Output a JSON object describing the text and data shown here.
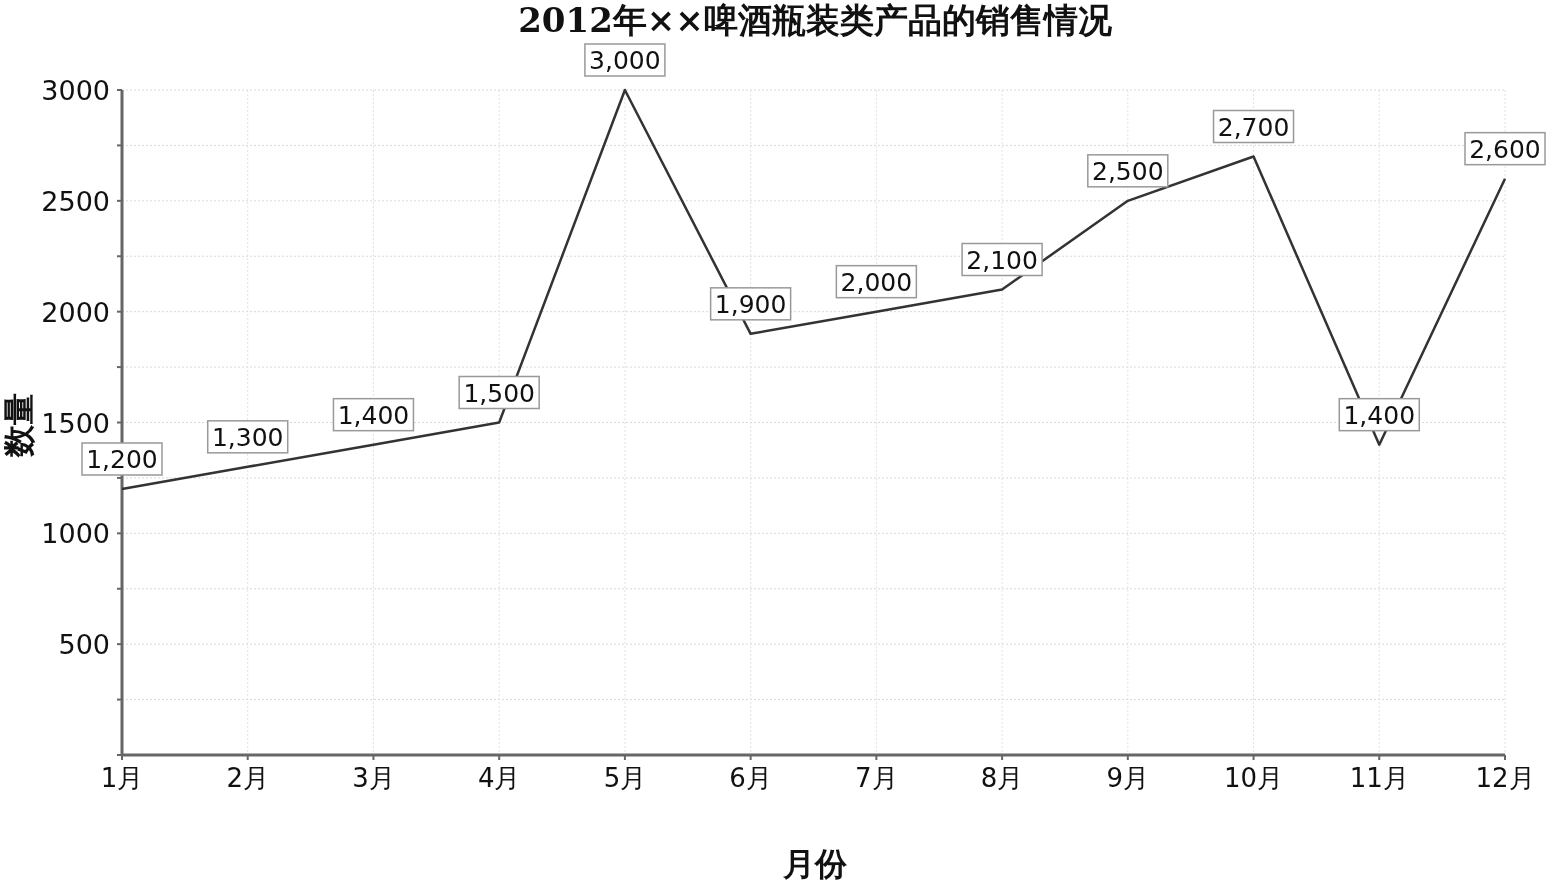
{
  "chart_data": {
    "type": "line",
    "title": "2012年××啤酒瓶装类产品的销售情况",
    "xlabel": "月份",
    "ylabel": "数量",
    "categories": [
      "1月",
      "2月",
      "3月",
      "4月",
      "5月",
      "6月",
      "7月",
      "8月",
      "9月",
      "10月",
      "11月",
      "12月"
    ],
    "series": [
      {
        "color": "#333333",
        "values": [
          1200,
          1300,
          1400,
          1500,
          3000,
          1900,
          2000,
          2100,
          2500,
          2700,
          1400,
          2600
        ],
        "value_labels": [
          "1,200",
          "1,300",
          "1,400",
          "1,500",
          "3,000",
          "1,900",
          "2,000",
          "2,100",
          "2,500",
          "2,700",
          "1,400",
          "2,600"
        ]
      }
    ],
    "ylim": [
      0,
      3000
    ],
    "yticks": [
      {
        "value": 0,
        "label": null
      },
      {
        "value": 250,
        "label": null
      },
      500,
      {
        "value": 750,
        "label": null
      },
      1000,
      {
        "value": 1250,
        "label": null
      },
      1500,
      {
        "value": 1750,
        "label": null
      },
      2000,
      {
        "value": 2250,
        "label": null
      },
      2500,
      {
        "value": 2750,
        "label": null
      },
      3000
    ],
    "grid": true,
    "marker": "none",
    "line_style": "solid"
  }
}
